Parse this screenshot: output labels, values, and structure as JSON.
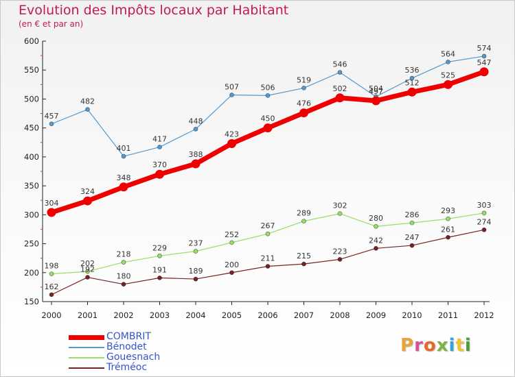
{
  "header": {
    "title": "Evolution des Impôts locaux par Habitant",
    "subtitle": "(en € et par an)"
  },
  "logo": {
    "text": "Proxiti",
    "colors": [
      "#e8a33d",
      "#d35499",
      "#e56a2a",
      "#7cb342",
      "#3aa0d8",
      "#f2c230",
      "#4f9a3a"
    ]
  },
  "chart_data": {
    "type": "line",
    "title": "Evolution des Impôts locaux par Habitant",
    "subtitle": "(en € et par an)",
    "categories": [
      "2000",
      "2001",
      "2002",
      "2003",
      "2004",
      "2005",
      "2006",
      "2007",
      "2008",
      "2009",
      "2010",
      "2011",
      "2012"
    ],
    "ylim": [
      150,
      600
    ],
    "yticks": [
      150,
      200,
      250,
      300,
      350,
      400,
      450,
      500,
      550,
      600
    ],
    "grid": false,
    "legend_position": "bottom-left",
    "series": [
      {
        "name": "COMBRIT",
        "color": "#ee0000",
        "values": [
          304,
          324,
          348,
          370,
          388,
          423,
          450,
          476,
          502,
          497,
          512,
          525,
          547
        ]
      },
      {
        "name": "Bénodet",
        "color": "#5599cc",
        "values": [
          457,
          482,
          401,
          417,
          448,
          507,
          506,
          519,
          546,
          504,
          536,
          564,
          574
        ]
      },
      {
        "name": "Gouesnach",
        "color": "#99dd66",
        "values": [
          198,
          202,
          218,
          229,
          237,
          252,
          267,
          289,
          302,
          280,
          286,
          293,
          303
        ]
      },
      {
        "name": "Tréméoc",
        "color": "#772222",
        "values": [
          162,
          192,
          180,
          191,
          189,
          200,
          211,
          215,
          223,
          242,
          247,
          261,
          274
        ]
      }
    ]
  }
}
